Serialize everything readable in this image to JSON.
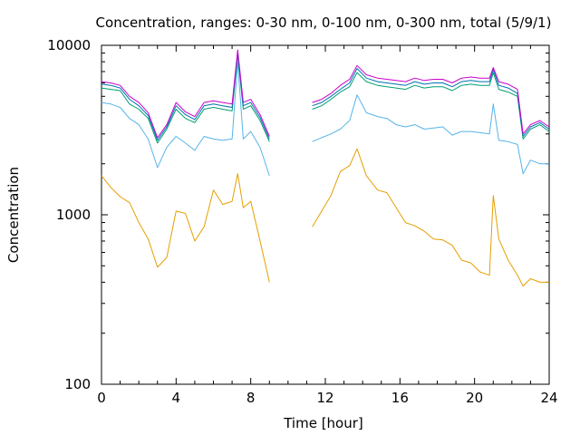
{
  "chart_data": {
    "type": "line",
    "title": "Concentration, ranges: 0-30 nm, 0-100 nm, 0-300 nm, total (5/9/1)",
    "xlabel": "Time [hour]",
    "ylabel": "Concentration",
    "xlim": [
      0,
      24
    ],
    "ylim": [
      100,
      10000
    ],
    "yscale": "log",
    "grid": false,
    "legend": "none",
    "x_ticks": [
      "0",
      "4",
      "8",
      "12",
      "16",
      "20",
      "24"
    ],
    "y_ticks": [
      "100",
      "1000",
      "10000"
    ],
    "x": [
      0,
      0.5,
      1,
      1.5,
      2,
      2.5,
      3,
      3.5,
      4,
      4.5,
      5,
      5.5,
      6,
      6.5,
      7,
      7.3,
      7.6,
      8,
      8.5,
      9,
      null,
      11.3,
      11.8,
      12.3,
      12.8,
      13.3,
      13.7,
      14.2,
      14.8,
      15.3,
      15.8,
      16.3,
      16.8,
      17.3,
      17.8,
      18.3,
      18.8,
      19.3,
      19.8,
      20.3,
      20.8,
      21.0,
      21.3,
      21.8,
      22.3,
      22.6,
      23,
      23.5,
      24
    ],
    "series": [
      {
        "color": "#e69f00",
        "values": [
          1700,
          1450,
          1280,
          1180,
          900,
          720,
          490,
          560,
          1050,
          1020,
          700,
          850,
          1400,
          1150,
          1200,
          1750,
          1100,
          1200,
          700,
          400,
          null,
          850,
          1050,
          1300,
          1800,
          1950,
          2450,
          1700,
          1400,
          1350,
          1100,
          900,
          860,
          800,
          720,
          710,
          660,
          540,
          520,
          460,
          440,
          1300,
          720,
          540,
          440,
          380,
          420,
          400,
          400
        ]
      },
      {
        "color": "#56b4e9",
        "values": [
          4600,
          4500,
          4300,
          3700,
          3400,
          2800,
          1900,
          2500,
          2900,
          2650,
          2400,
          2900,
          2800,
          2750,
          2800,
          8000,
          2800,
          3100,
          2500,
          1700,
          null,
          2700,
          2850,
          3000,
          3200,
          3600,
          5100,
          4000,
          3800,
          3700,
          3400,
          3300,
          3400,
          3200,
          3250,
          3300,
          2950,
          3100,
          3100,
          3050,
          3000,
          4500,
          2750,
          2700,
          2600,
          1750,
          2100,
          2000,
          2000
        ]
      },
      {
        "color": "#009e73",
        "values": [
          5600,
          5500,
          5400,
          4500,
          4200,
          3700,
          2650,
          3200,
          4200,
          3700,
          3500,
          4200,
          4300,
          4200,
          4100,
          8800,
          4200,
          4400,
          3600,
          2700,
          null,
          4200,
          4400,
          4800,
          5300,
          5700,
          6900,
          6100,
          5800,
          5700,
          5600,
          5500,
          5800,
          5600,
          5700,
          5700,
          5400,
          5800,
          5900,
          5800,
          5800,
          6900,
          5500,
          5300,
          5000,
          2800,
          3200,
          3400,
          3100
        ]
      },
      {
        "color": "#0072b2",
        "values": [
          5900,
          5800,
          5600,
          4800,
          4400,
          3850,
          2750,
          3300,
          4400,
          3900,
          3650,
          4400,
          4500,
          4400,
          4300,
          9100,
          4400,
          4600,
          3750,
          2800,
          null,
          4400,
          4600,
          5000,
          5500,
          6000,
          7300,
          6400,
          6100,
          6000,
          5900,
          5800,
          6100,
          5900,
          6000,
          6000,
          5700,
          6100,
          6200,
          6100,
          6100,
          7200,
          5800,
          5600,
          5200,
          2900,
          3300,
          3500,
          3200
        ]
      },
      {
        "color": "#cc00cc",
        "values": [
          6100,
          6000,
          5800,
          5000,
          4600,
          4000,
          2850,
          3400,
          4600,
          4050,
          3800,
          4600,
          4700,
          4600,
          4500,
          9400,
          4600,
          4800,
          3900,
          2900,
          null,
          4600,
          4800,
          5200,
          5800,
          6300,
          7600,
          6700,
          6400,
          6300,
          6200,
          6100,
          6400,
          6200,
          6300,
          6300,
          6000,
          6400,
          6500,
          6400,
          6400,
          7400,
          6100,
          5900,
          5500,
          3000,
          3400,
          3600,
          3300
        ]
      }
    ]
  }
}
